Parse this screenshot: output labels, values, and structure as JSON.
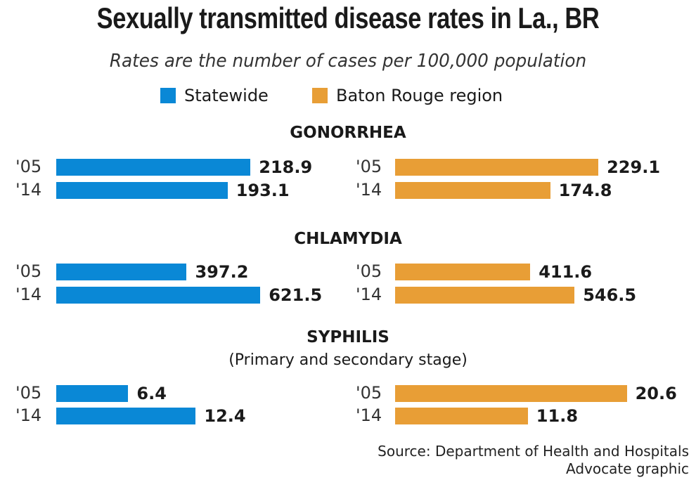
{
  "chart_data": {
    "type": "bar",
    "orientation": "horizontal",
    "title": "Sexually transmitted disease rates in La., BR",
    "subtitle": "Rates are the number of cases per 100,000 population",
    "categories": [
      "'05",
      "'14"
    ],
    "legend": [
      {
        "name": "Statewide",
        "color": "#0a88d6"
      },
      {
        "name": "Baton Rouge region",
        "color": "#e89e36"
      }
    ],
    "panels": [
      {
        "name": "GONORRHEA",
        "note": "",
        "series": [
          {
            "name": "Statewide",
            "values": [
              218.9,
              193.1
            ],
            "labels": [
              "218.9",
              "193.1"
            ]
          },
          {
            "name": "Baton Rouge region",
            "values": [
              229.1,
              174.8
            ],
            "labels": [
              "229.1",
              "174.8"
            ]
          }
        ]
      },
      {
        "name": "CHLAMYDIA",
        "note": "",
        "series": [
          {
            "name": "Statewide",
            "values": [
              397.2,
              621.5
            ],
            "labels": [
              "397.2",
              "621.5"
            ]
          },
          {
            "name": "Baton Rouge region",
            "values": [
              411.6,
              546.5
            ],
            "labels": [
              "411.6",
              "546.5"
            ]
          }
        ]
      },
      {
        "name": "SYPHILIS",
        "note": "(Primary and secondary stage)",
        "series": [
          {
            "name": "Statewide",
            "values": [
              6.4,
              12.4
            ],
            "labels": [
              "6.4",
              "12.4"
            ]
          },
          {
            "name": "Baton Rouge region",
            "values": [
              20.6,
              11.8
            ],
            "labels": [
              "20.6",
              "11.8"
            ]
          }
        ]
      }
    ],
    "source": "Source: Department of Health and Hospitals",
    "credit": "Advocate graphic"
  }
}
